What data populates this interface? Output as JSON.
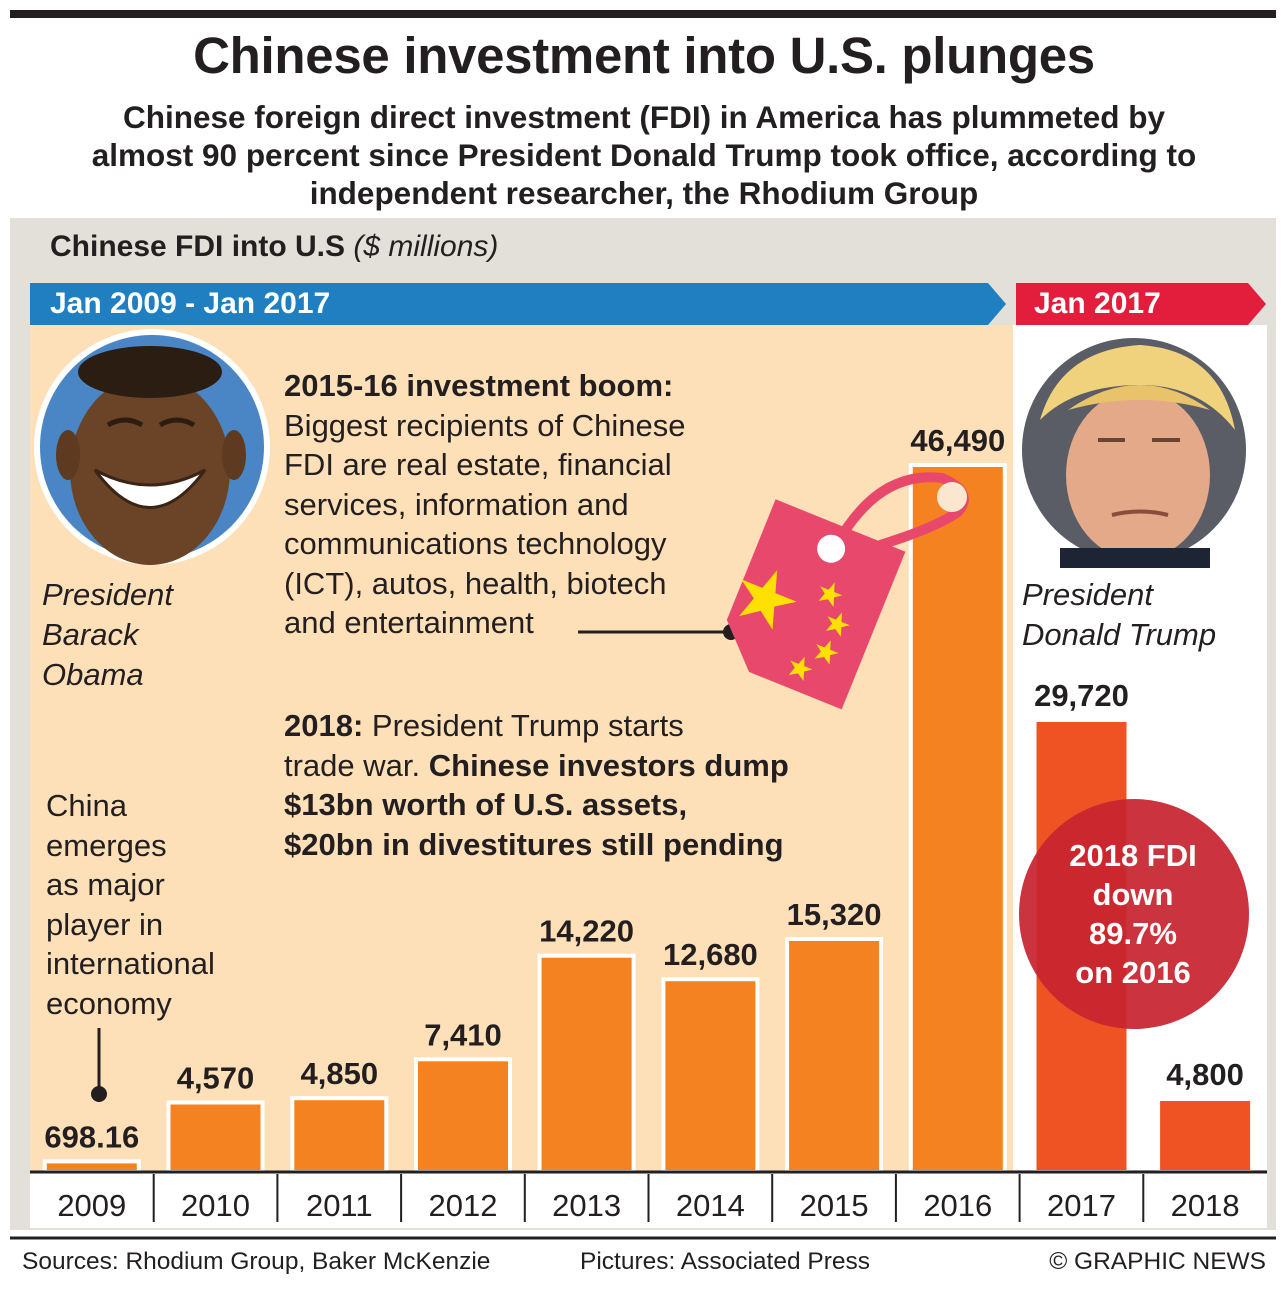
{
  "chart_data": {
    "type": "bar",
    "title": "Chinese investment into U.S. plunges",
    "subtitle": "Chinese foreign direct investment (FDI) in America has plummeted by almost 90 percent since President Donald Trump took office, according to independent researcher, the Rhodium Group",
    "chart_label": "Chinese FDI into U.S",
    "unit_label": "($ millions)",
    "categories": [
      "2009",
      "2010",
      "2011",
      "2012",
      "2013",
      "2014",
      "2015",
      "2016",
      "2017",
      "2018"
    ],
    "values": [
      698.16,
      4570,
      4850,
      7410,
      14220,
      12680,
      15320,
      46490,
      29720,
      4800
    ],
    "value_labels": [
      "698.16",
      "4,570",
      "4,850",
      "7,410",
      "14,220",
      "12,680",
      "15,320",
      "46,490",
      "29,720",
      "4,800"
    ],
    "ylim": [
      0,
      46490
    ],
    "grid": false,
    "periods": [
      {
        "label": "Jan 2009 - Jan 2017",
        "categories": [
          "2009",
          "2010",
          "2011",
          "2012",
          "2013",
          "2014",
          "2015",
          "2016"
        ],
        "color": "#1f7fc1"
      },
      {
        "label": "Jan 2017",
        "categories": [
          "2017",
          "2018"
        ],
        "color": "#e31e3c"
      }
    ]
  },
  "colors": {
    "bar_obama": "#f58220",
    "bar_trump": "#ef5223",
    "band_obama": "#1f7fc1",
    "band_trump": "#e31e3c",
    "obama_background": "#fddfb8",
    "badge": "#c7252f",
    "tag": "#e8486c",
    "star": "#ffe000"
  },
  "captions": {
    "obama": [
      "President",
      "Barack",
      "Obama"
    ],
    "trump": [
      "President",
      "Donald Trump"
    ]
  },
  "annotations": {
    "boom": {
      "title": "2015-16 investment boom:",
      "lines": [
        "Biggest recipients of Chinese",
        "FDI are real estate, financial",
        "services, information and",
        "communications technology",
        "(ICT), autos, health, biotech",
        "and entertainment"
      ]
    },
    "trade_war": {
      "year": "2018:",
      "line1_rest": " President Trump starts",
      "line2_plain": "trade war. ",
      "line2_bold": "Chinese investors dump",
      "line3": "$13bn worth of U.S. assets,",
      "line4": "$20bn in divestitures still pending"
    },
    "china": [
      "China",
      "emerges",
      "as major",
      "player in",
      "international",
      "economy"
    ],
    "badge": [
      "2018 FDI",
      "down",
      "89.7%",
      "on 2016"
    ]
  },
  "icons": [
    "obama-portrait-icon",
    "trump-portrait-icon",
    "china-flag-tag-icon"
  ],
  "footer": {
    "sources": "Sources: Rhodium Group, Baker McKenzie",
    "pictures": "Pictures: Associated Press",
    "credit": "© GRAPHIC NEWS"
  }
}
